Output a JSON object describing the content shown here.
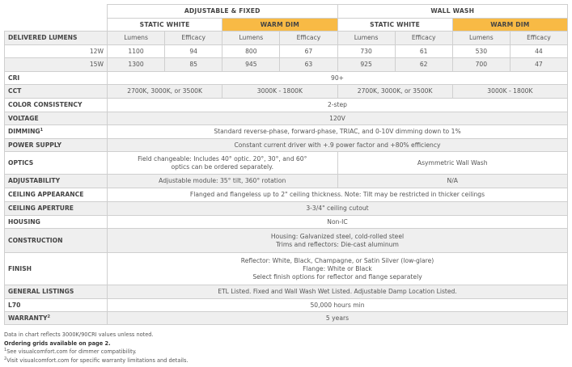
{
  "header": {
    "groups": [
      "ADJUSTABLE & FIXED",
      "WALL WASH"
    ],
    "subgroups": [
      "STATIC WHITE",
      "WARM DIM",
      "STATIC WHITE",
      "WARM DIM"
    ],
    "accent_color": "#F8BA45"
  },
  "delivered_lumens": {
    "label": "DELIVERED LUMENS",
    "columns": [
      "Lumens",
      "Efficacy",
      "Lumens",
      "Efficacy",
      "Lumens",
      "Efficacy",
      "Lumens",
      "Efficacy"
    ],
    "rows": [
      {
        "label": "12W",
        "values": [
          "1100",
          "94",
          "800",
          "67",
          "730",
          "61",
          "530",
          "44"
        ]
      },
      {
        "label": "15W",
        "values": [
          "1300",
          "85",
          "945",
          "63",
          "925",
          "62",
          "700",
          "47"
        ]
      }
    ]
  },
  "specs": {
    "cri": {
      "label": "CRI",
      "value": "90+"
    },
    "cct": {
      "label": "CCT",
      "values": [
        "2700K, 3000K, or 3500K",
        "3000K - 1800K",
        "2700K, 3000K, or 3500K",
        "3000K - 1800K"
      ]
    },
    "color_consistency": {
      "label": "COLOR CONSISTENCY",
      "value": "2-step"
    },
    "voltage": {
      "label": "VOLTAGE",
      "value": "120V"
    },
    "dimming": {
      "label": "DIMMING",
      "footnote": "1",
      "value": "Standard reverse-phase, forward-phase, TRIAC, and 0-10V dimming down to 1%"
    },
    "power_supply": {
      "label": "POWER SUPPLY",
      "value": "Constant current driver with +.9 power factor and +80% efficiency"
    },
    "optics": {
      "label": "OPTICS",
      "values": [
        "Field changeable: Includes 40° optic. 20°, 30°, and 60° optics can be ordered separately.",
        "Asymmetric Wall Wash"
      ]
    },
    "adjustability": {
      "label": "ADJUSTABILITY",
      "values": [
        "Adjustable module: 35° tilt, 360° rotation",
        "N/A"
      ]
    },
    "ceiling_appearance": {
      "label": "CEILING APPEARANCE",
      "value": "Flanged and flangeless up to 2\" ceiling thickness. Note: Tilt may be restricted in thicker ceilings"
    },
    "ceiling_aperture": {
      "label": "CEILING APERTURE",
      "value": "3-3/4\" ceiling cutout"
    },
    "housing": {
      "label": "HOUSING",
      "value": "Non-IC"
    },
    "construction": {
      "label": "CONSTRUCTION",
      "lines": [
        "Housing: Galvanized steel, cold-rolled steel",
        "Trims and reflectors: Die-cast aluminum"
      ]
    },
    "finish": {
      "label": "FINISH",
      "lines": [
        "Reflector: White, Black, Champagne, or Satin Silver (low-glare)",
        "Flange: White or Black",
        "Select finish options for reflector and flange separately"
      ]
    },
    "general_listings": {
      "label": "GENERAL LISTINGS",
      "value": "ETL Listed. Fixed and Wall Wash Wet Listed. Adjustable Damp Location Listed."
    },
    "l70": {
      "label": "L70",
      "value": "50,000 hours min"
    },
    "warranty": {
      "label": "WARRANTY",
      "footnote": "2",
      "value": "5 years"
    }
  },
  "notes": {
    "data_note": "Data in chart reflects 3000K/90CRI values unless noted.",
    "ordering": "Ordering grids available on page 2.",
    "footnote1_mark": "1",
    "footnote1": "See visualcomfort.com for dimmer compatibility.",
    "footnote2_mark": "2",
    "footnote2": "Visit visualcomfort.com for specific warranty limitations and details."
  }
}
